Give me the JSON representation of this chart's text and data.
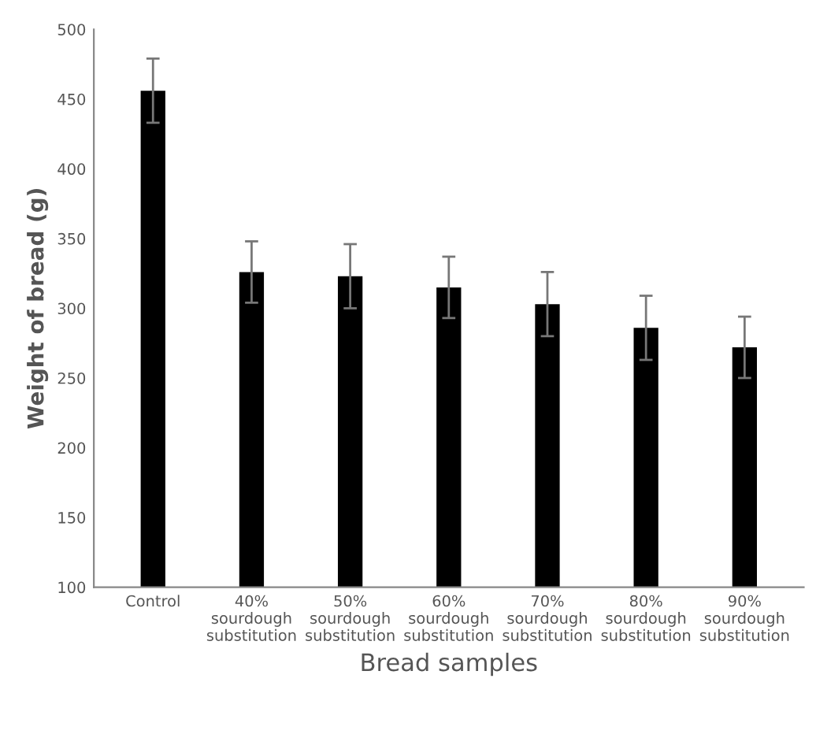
{
  "chart_data": {
    "type": "bar",
    "xlabel": "Bread samples",
    "ylabel": "Weight of bread (g)",
    "categories": [
      "Control",
      "40%\nsourdough\nsubstitution",
      "50%\nsourdough\nsubstitution",
      "60%\nsourdough\nsubstitution",
      "70%\nsourdough\nsubstitution",
      "80%\nsourdough\nsubstitution",
      "90%\nsourdough\nsubstitution"
    ],
    "values": [
      456,
      326,
      323,
      315,
      303,
      286,
      272
    ],
    "errors": [
      23,
      22,
      23,
      22,
      23,
      23,
      22
    ],
    "color": "#000000",
    "ylim": [
      100,
      500
    ],
    "yticks": [
      100,
      150,
      200,
      250,
      300,
      350,
      400,
      450,
      500
    ],
    "grid": false
  }
}
